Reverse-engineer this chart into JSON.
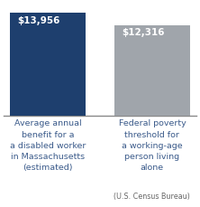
{
  "categories_line1": [
    "Average annual\nbenefit for a\na disabled worker\nin Massachusetts\n(estimated)",
    "Federal poverty\nthreshold for\na working-age\nperson living\nalone"
  ],
  "categories_source": [
    "",
    "(U.S. Census Bureau)"
  ],
  "values": [
    13956,
    12316
  ],
  "bar_colors": [
    "#1e3f6e",
    "#a0a5ab"
  ],
  "bar_labels": [
    "$13,956",
    "$12,316"
  ],
  "bar_label_color": "#ffffff",
  "bar_label_fontsize": 7.5,
  "xlabel_color": "#3a5a8a",
  "source_color": "#666666",
  "ylim": [
    0,
    15800
  ],
  "background_color": "#ffffff",
  "label_fontsize": 6.8,
  "source_fontsize": 5.8
}
